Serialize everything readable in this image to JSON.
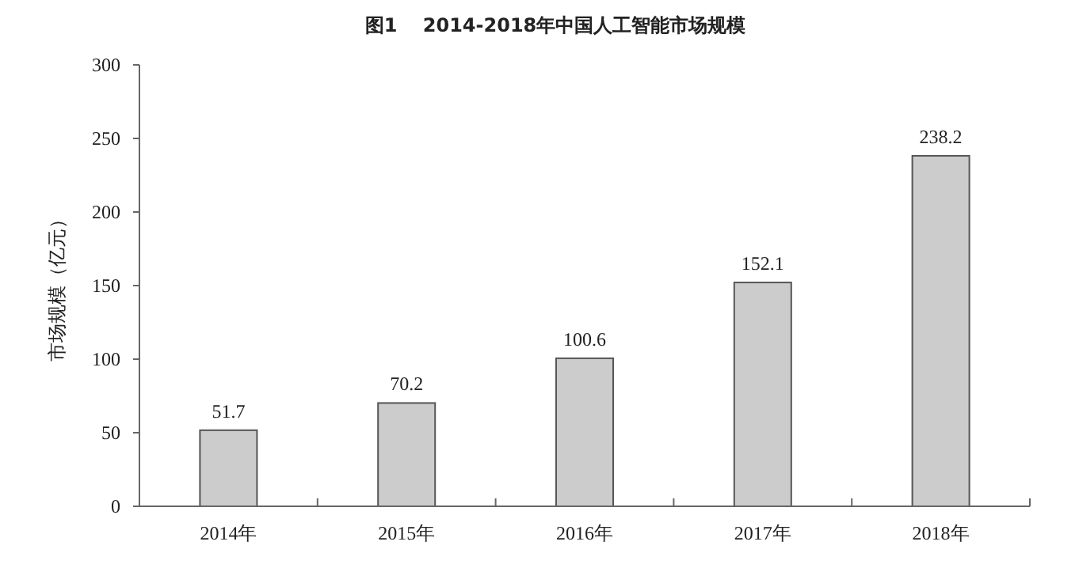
{
  "chart_data": {
    "type": "bar",
    "title": "图1　 2014-2018年中国人工智能市场规模",
    "ylabel": "市场规模（亿元）",
    "categories": [
      "2014年",
      "2015年",
      "2016年",
      "2017年",
      "2018年"
    ],
    "values": [
      51.7,
      70.2,
      100.6,
      152.1,
      238.2
    ],
    "color": "#cccccc",
    "ylim": [
      0,
      300
    ],
    "yticks": [
      0,
      50,
      100,
      150,
      200,
      250,
      300
    ],
    "data_labels": true,
    "grid": false
  }
}
